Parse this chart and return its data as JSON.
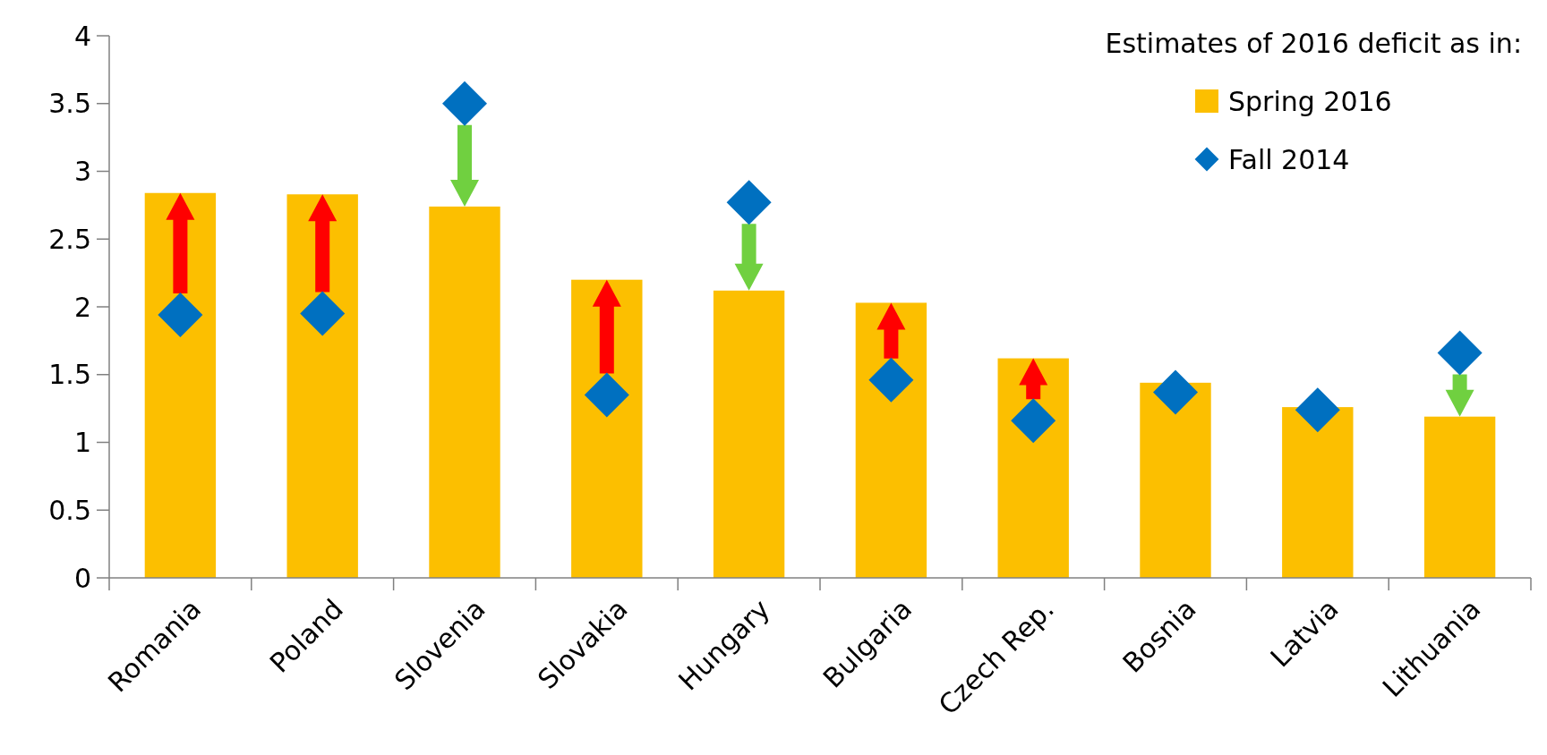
{
  "chart_data": {
    "type": "bar",
    "legend_title": "Estimates of 2016 deficit as in:",
    "categories": [
      "Romania",
      "Poland",
      "Slovenia",
      "Slovakia",
      "Hungary",
      "Bulgaria",
      "Czech Rep.",
      "Bosnia",
      "Latvia",
      "Lithuania"
    ],
    "series": [
      {
        "name": "Spring 2016",
        "color": "#fcbf00",
        "values": [
          2.84,
          2.83,
          2.74,
          2.2,
          2.12,
          2.03,
          1.62,
          1.44,
          1.26,
          1.19
        ]
      },
      {
        "name": "Fall 2014",
        "type": "scatter",
        "color": "#0070c0",
        "marker": "diamond",
        "x": [
          "Romania",
          "Poland",
          "Slovenia",
          "Slovakia",
          "Hungary",
          "Bulgaria",
          "Czech Rep.",
          "Bosnia",
          "Latvia",
          "Lithuania"
        ],
        "values": [
          1.94,
          1.95,
          3.5,
          1.35,
          2.77,
          1.46,
          1.16,
          1.37,
          1.24,
          1.66
        ]
      }
    ],
    "ylim": [
      0,
      4
    ],
    "yticks": [
      0,
      0.5,
      1,
      1.5,
      2,
      2.5,
      3,
      3.5,
      4
    ],
    "grid": false,
    "legend": "top right"
  }
}
